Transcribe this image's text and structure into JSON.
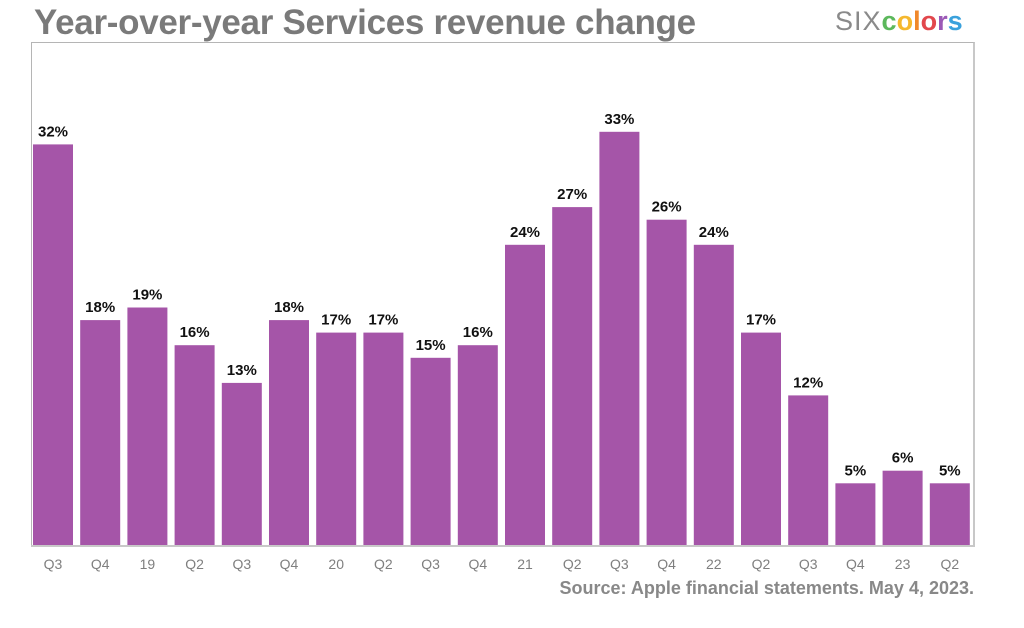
{
  "header": {
    "title": "Year-over-year Services revenue change",
    "logo": {
      "prefix": "SIX",
      "letters": [
        {
          "char": "c",
          "color": "#5cb85c"
        },
        {
          "char": "o",
          "color": "#f5b82e"
        },
        {
          "char": "l",
          "color": "#f0882a"
        },
        {
          "char": "o",
          "color": "#e2474c"
        },
        {
          "char": "r",
          "color": "#9b59b6"
        },
        {
          "char": "s",
          "color": "#3aa1dc"
        }
      ]
    }
  },
  "footer": {
    "source": "Source: Apple financial statements. May 4, 2023."
  },
  "chart_data": {
    "type": "bar",
    "title": "Year-over-year Services revenue change",
    "xlabel": "",
    "ylabel": "",
    "categories": [
      "Q3",
      "Q4",
      "19",
      "Q2",
      "Q3",
      "Q4",
      "20",
      "Q2",
      "Q3",
      "Q4",
      "21",
      "Q2",
      "Q3",
      "Q4",
      "22",
      "Q2",
      "Q3",
      "Q4",
      "23",
      "Q2"
    ],
    "values": [
      32,
      18,
      19,
      16,
      13,
      18,
      17,
      17,
      15,
      16,
      24,
      27,
      33,
      26,
      24,
      17,
      12,
      5,
      6,
      5
    ],
    "value_labels": [
      "32%",
      "18%",
      "19%",
      "16%",
      "13%",
      "18%",
      "17%",
      "17%",
      "15%",
      "16%",
      "24%",
      "27%",
      "33%",
      "26%",
      "24%",
      "17%",
      "12%",
      "5%",
      "6%",
      "5%"
    ],
    "unit": "%",
    "ylim": [
      0,
      40
    ],
    "grid": false,
    "legend": "none",
    "bar_color": "#a555a8",
    "source": "Source: Apple financial statements. May 4, 2023."
  }
}
